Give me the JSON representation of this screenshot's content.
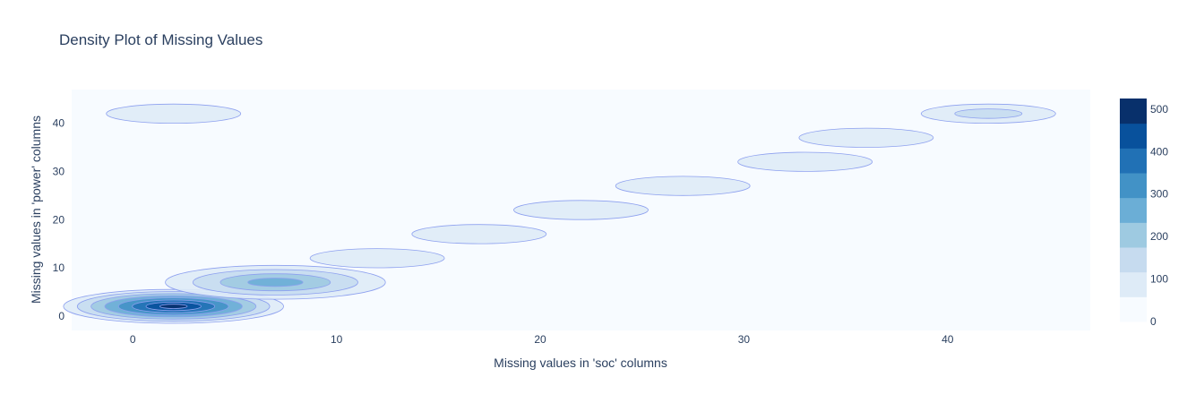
{
  "chart_data": {
    "type": "heatmap",
    "subtype": "density-contour",
    "title": "Density Plot of Missing Values",
    "xlabel": "Missing values in 'soc' columns",
    "ylabel": "Missing values in 'power' columns",
    "xlim": [
      -3,
      47
    ],
    "ylim": [
      -3,
      47
    ],
    "x_ticks": [
      0,
      10,
      20,
      30,
      40
    ],
    "y_ticks": [
      0,
      10,
      20,
      30,
      40
    ],
    "colorscale": [
      "#f7fbff",
      "#deebf7",
      "#c6dbef",
      "#9ecae1",
      "#6baed6",
      "#4292c6",
      "#2171b5",
      "#08519c",
      "#08306b"
    ],
    "contour_line_color": "#8da0ef",
    "colorbar": {
      "min": 0,
      "max": 525,
      "ticks": [
        0,
        100,
        200,
        300,
        400,
        500
      ]
    },
    "density_clusters": [
      {
        "x": 2,
        "y": 2,
        "peak": 525
      },
      {
        "x": 7,
        "y": 7,
        "peak": 255
      },
      {
        "x": 42,
        "y": 42,
        "peak": 135
      },
      {
        "x": 2,
        "y": 42,
        "peak": 40
      },
      {
        "x": 22,
        "y": 22,
        "peak": 80
      },
      {
        "x": 27,
        "y": 27,
        "peak": 80
      },
      {
        "x": 12,
        "y": 12,
        "peak": 60
      },
      {
        "x": 17,
        "y": 17,
        "peak": 60
      },
      {
        "x": 33,
        "y": 32,
        "peak": 40
      },
      {
        "x": 36,
        "y": 37,
        "peak": 40
      }
    ]
  }
}
